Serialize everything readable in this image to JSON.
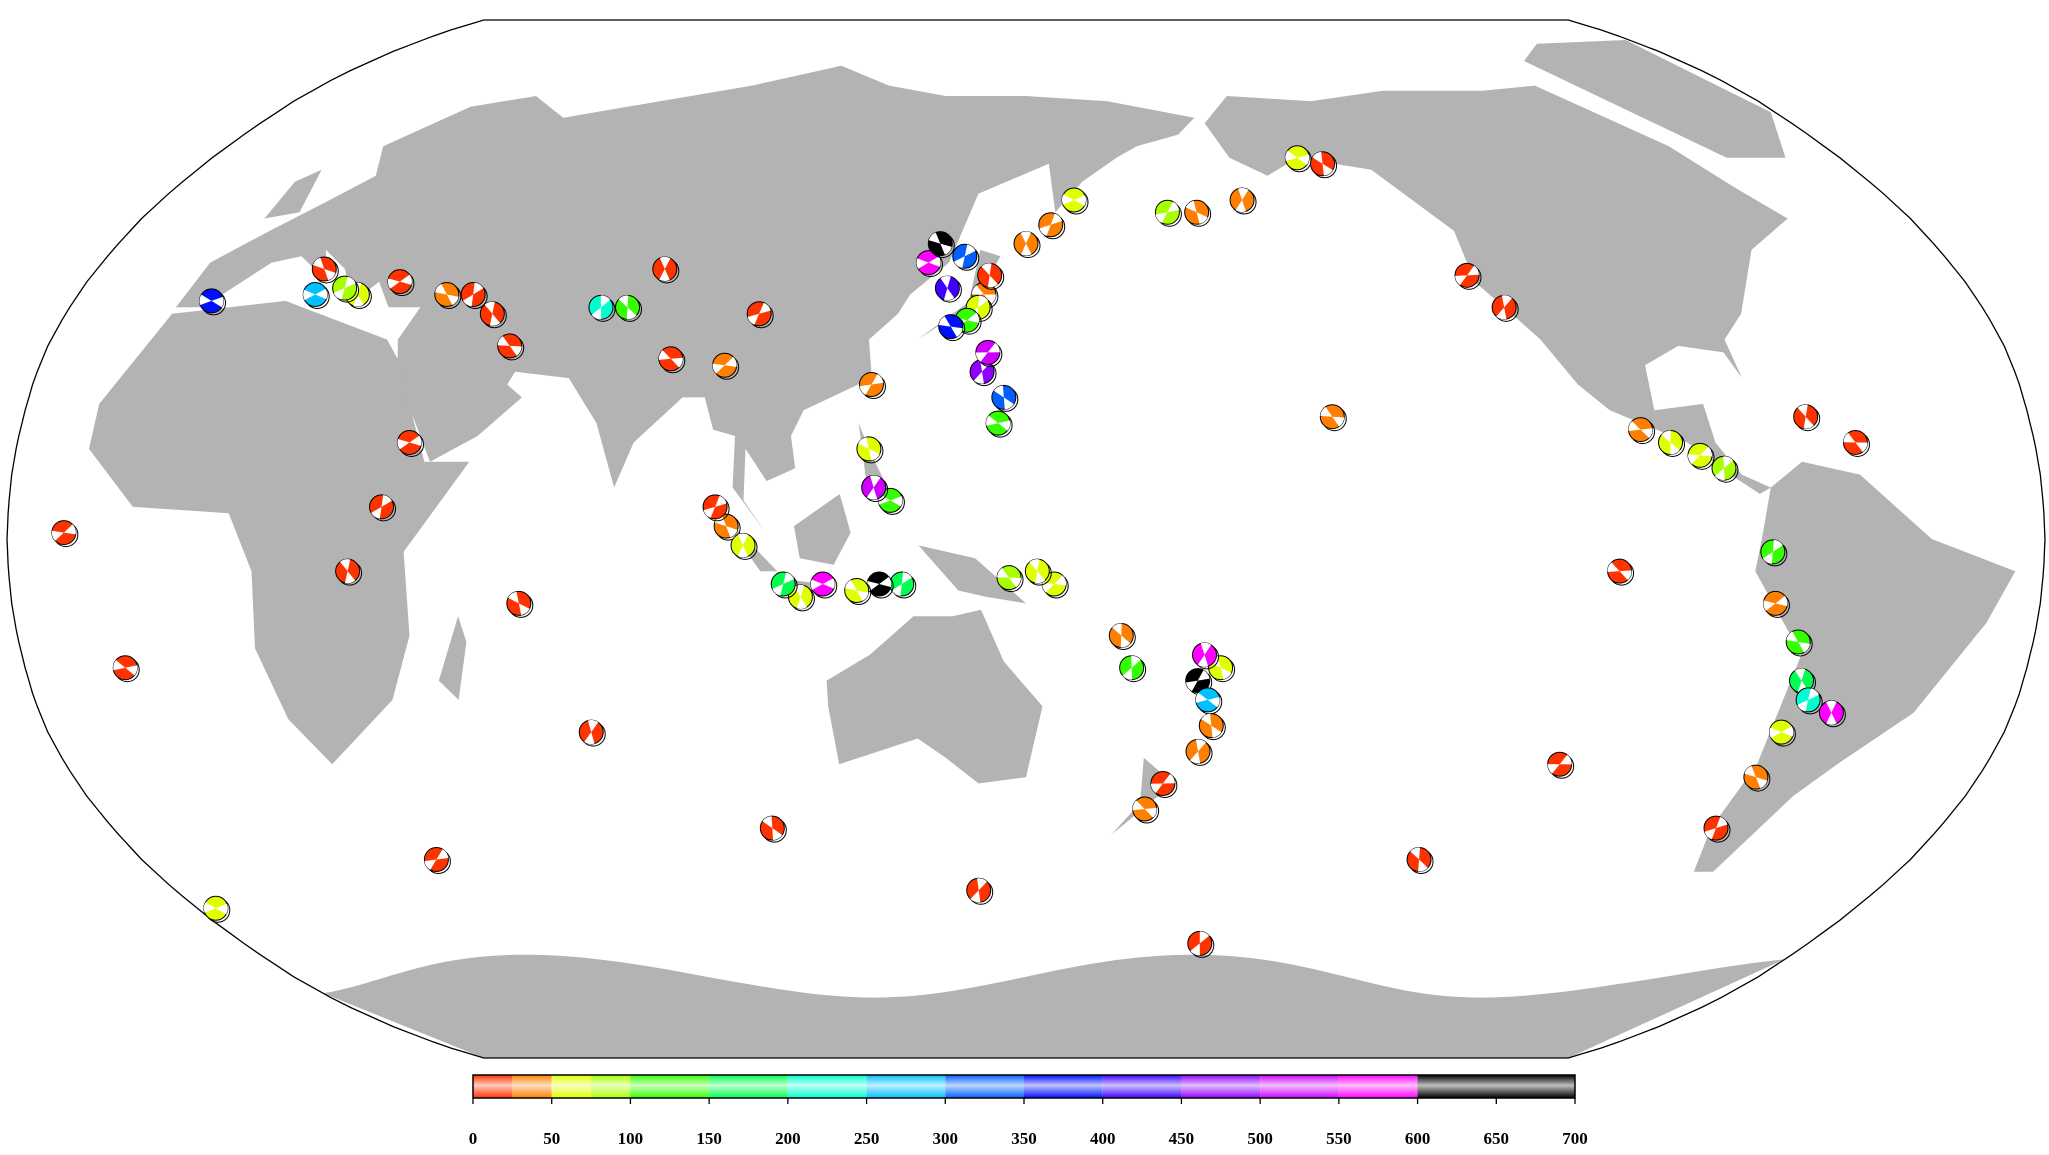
{
  "colorbar": {
    "bounds": [
      0,
      25,
      50,
      75,
      100,
      150,
      200,
      250,
      300,
      350,
      400,
      450,
      500,
      550,
      600,
      700
    ],
    "colors": [
      "#ff3300",
      "#ff8000",
      "#e0ff00",
      "#a8ff00",
      "#33ff00",
      "#00ff50",
      "#00ffd0",
      "#00c0ff",
      "#0060ff",
      "#0010ff",
      "#4000ff",
      "#9000ff",
      "#d000ff",
      "#ff00ff",
      "#000000"
    ],
    "lim": [
      0,
      700
    ],
    "ticks": [
      0,
      50,
      100,
      150,
      200,
      250,
      300,
      350,
      400,
      450,
      500,
      550,
      600,
      650,
      700
    ]
  },
  "events": [
    {
      "lon": 142,
      "lat": 38,
      "depth": 30
    },
    {
      "lon": 143,
      "lat": 41,
      "depth": 20
    },
    {
      "lon": 141,
      "lat": 36,
      "depth": 60
    },
    {
      "lon": 139,
      "lat": 34,
      "depth": 110
    },
    {
      "lon": 136,
      "lat": 33,
      "depth": 350
    },
    {
      "lon": 135,
      "lat": 39,
      "depth": 420
    },
    {
      "lon": 138,
      "lat": 44,
      "depth": 300
    },
    {
      "lon": 131,
      "lat": 43,
      "depth": 560
    },
    {
      "lon": 133,
      "lat": 46,
      "depth": 640
    },
    {
      "lon": 150,
      "lat": 46,
      "depth": 40
    },
    {
      "lon": 155,
      "lat": 49,
      "depth": 30
    },
    {
      "lon": 160,
      "lat": 53,
      "depth": 60
    },
    {
      "lon": -175,
      "lat": 51,
      "depth": 30
    },
    {
      "lon": -165,
      "lat": 53,
      "depth": 40
    },
    {
      "lon": 179,
      "lat": 51,
      "depth": 90
    },
    {
      "lon": -150,
      "lat": 60,
      "depth": 60
    },
    {
      "lon": -145,
      "lat": 59,
      "depth": 20
    },
    {
      "lon": -120,
      "lat": 36,
      "depth": 10
    },
    {
      "lon": -125,
      "lat": 41,
      "depth": 15
    },
    {
      "lon": -100,
      "lat": 17,
      "depth": 40
    },
    {
      "lon": -95,
      "lat": 15,
      "depth": 70
    },
    {
      "lon": -86,
      "lat": 11,
      "depth": 90
    },
    {
      "lon": -90,
      "lat": 13,
      "depth": 50
    },
    {
      "lon": -62,
      "lat": 15,
      "depth": 20
    },
    {
      "lon": -70,
      "lat": 19,
      "depth": 15
    },
    {
      "lon": -78,
      "lat": -2,
      "depth": 110
    },
    {
      "lon": -77,
      "lat": -10,
      "depth": 40
    },
    {
      "lon": -72,
      "lat": -16,
      "depth": 120
    },
    {
      "lon": -70,
      "lat": -22,
      "depth": 160
    },
    {
      "lon": -68,
      "lat": -25,
      "depth": 210
    },
    {
      "lon": -71,
      "lat": -30,
      "depth": 60
    },
    {
      "lon": -72,
      "lat": -37,
      "depth": 30
    },
    {
      "lon": -63,
      "lat": -27,
      "depth": 560
    },
    {
      "lon": -74,
      "lat": -45,
      "depth": 20
    },
    {
      "lon": -26,
      "lat": -58,
      "depth": 60
    },
    {
      "lon": -175,
      "lat": -20,
      "depth": 50
    },
    {
      "lon": -178,
      "lat": -18,
      "depth": 560
    },
    {
      "lon": -179,
      "lat": -22,
      "depth": 620
    },
    {
      "lon": -177,
      "lat": -25,
      "depth": 250
    },
    {
      "lon": -176,
      "lat": -29,
      "depth": 30
    },
    {
      "lon": -178,
      "lat": -33,
      "depth": 40
    },
    {
      "lon": 176,
      "lat": -38,
      "depth": 20
    },
    {
      "lon": 173,
      "lat": -42,
      "depth": 30
    },
    {
      "lon": 167,
      "lat": -15,
      "depth": 40
    },
    {
      "lon": 169,
      "lat": -20,
      "depth": 110
    },
    {
      "lon": 155,
      "lat": -7,
      "depth": 50
    },
    {
      "lon": 147,
      "lat": -6,
      "depth": 80
    },
    {
      "lon": 152,
      "lat": -5,
      "depth": 60
    },
    {
      "lon": 128,
      "lat": -7,
      "depth": 160
    },
    {
      "lon": 124,
      "lat": -7,
      "depth": 620
    },
    {
      "lon": 120,
      "lat": -8,
      "depth": 50
    },
    {
      "lon": 110,
      "lat": -9,
      "depth": 60
    },
    {
      "lon": 107,
      "lat": -7,
      "depth": 160
    },
    {
      "lon": 114,
      "lat": -7,
      "depth": 580
    },
    {
      "lon": 97,
      "lat": 2,
      "depth": 30
    },
    {
      "lon": 100,
      "lat": -1,
      "depth": 60
    },
    {
      "lon": 95,
      "lat": 5,
      "depth": 20
    },
    {
      "lon": 126,
      "lat": 6,
      "depth": 110
    },
    {
      "lon": 122,
      "lat": 14,
      "depth": 50
    },
    {
      "lon": 123,
      "lat": 8,
      "depth": 520
    },
    {
      "lon": 122,
      "lat": 24,
      "depth": 30
    },
    {
      "lon": 145,
      "lat": 18,
      "depth": 110
    },
    {
      "lon": 146,
      "lat": 22,
      "depth": 300
    },
    {
      "lon": 142,
      "lat": 26,
      "depth": 460
    },
    {
      "lon": 143,
      "lat": 29,
      "depth": 510
    },
    {
      "lon": 85,
      "lat": 28,
      "depth": 20
    },
    {
      "lon": 75,
      "lat": 36,
      "depth": 110
    },
    {
      "lon": 70,
      "lat": 36,
      "depth": 210
    },
    {
      "lon": 95,
      "lat": 27,
      "depth": 40
    },
    {
      "lon": 55,
      "lat": 30,
      "depth": 20
    },
    {
      "lon": 50,
      "lat": 35,
      "depth": 10
    },
    {
      "lon": 45,
      "lat": 38,
      "depth": 15
    },
    {
      "lon": 30,
      "lat": 40,
      "depth": 15
    },
    {
      "lon": 40,
      "lat": 38,
      "depth": 30
    },
    {
      "lon": 23,
      "lat": 38,
      "depth": 60
    },
    {
      "lon": 20,
      "lat": 39,
      "depth": 90
    },
    {
      "lon": 15,
      "lat": 38,
      "depth": 260
    },
    {
      "lon": 14,
      "lat": 42,
      "depth": 10
    },
    {
      "lon": 80,
      "lat": 42,
      "depth": 20
    },
    {
      "lon": 100,
      "lat": 35,
      "depth": 15
    },
    {
      "lon": -4,
      "lat": 37,
      "depth": 360
    },
    {
      "lon": 60,
      "lat": -10,
      "depth": 10
    },
    {
      "lon": 70,
      "lat": -30,
      "depth": 10
    },
    {
      "lon": 30,
      "lat": -50,
      "depth": 10
    },
    {
      "lon": -12,
      "lat": -20,
      "depth": 10
    },
    {
      "lon": 100,
      "lat": -45,
      "depth": 10
    },
    {
      "lon": 140,
      "lat": -55,
      "depth": 10
    },
    {
      "lon": -110,
      "lat": -35,
      "depth": 10
    },
    {
      "lon": -105,
      "lat": -5,
      "depth": 10
    },
    {
      "lon": -130,
      "lat": -50,
      "depth": 10
    },
    {
      "lon": -170,
      "lat": -64,
      "depth": 10
    },
    {
      "lon": -20,
      "lat": 1,
      "depth": 10
    },
    {
      "lon": -155,
      "lat": 19,
      "depth": 30
    },
    {
      "lon": 30,
      "lat": -5,
      "depth": 15
    },
    {
      "lon": 36,
      "lat": 5,
      "depth": 15
    },
    {
      "lon": 40,
      "lat": 15,
      "depth": 10
    }
  ]
}
